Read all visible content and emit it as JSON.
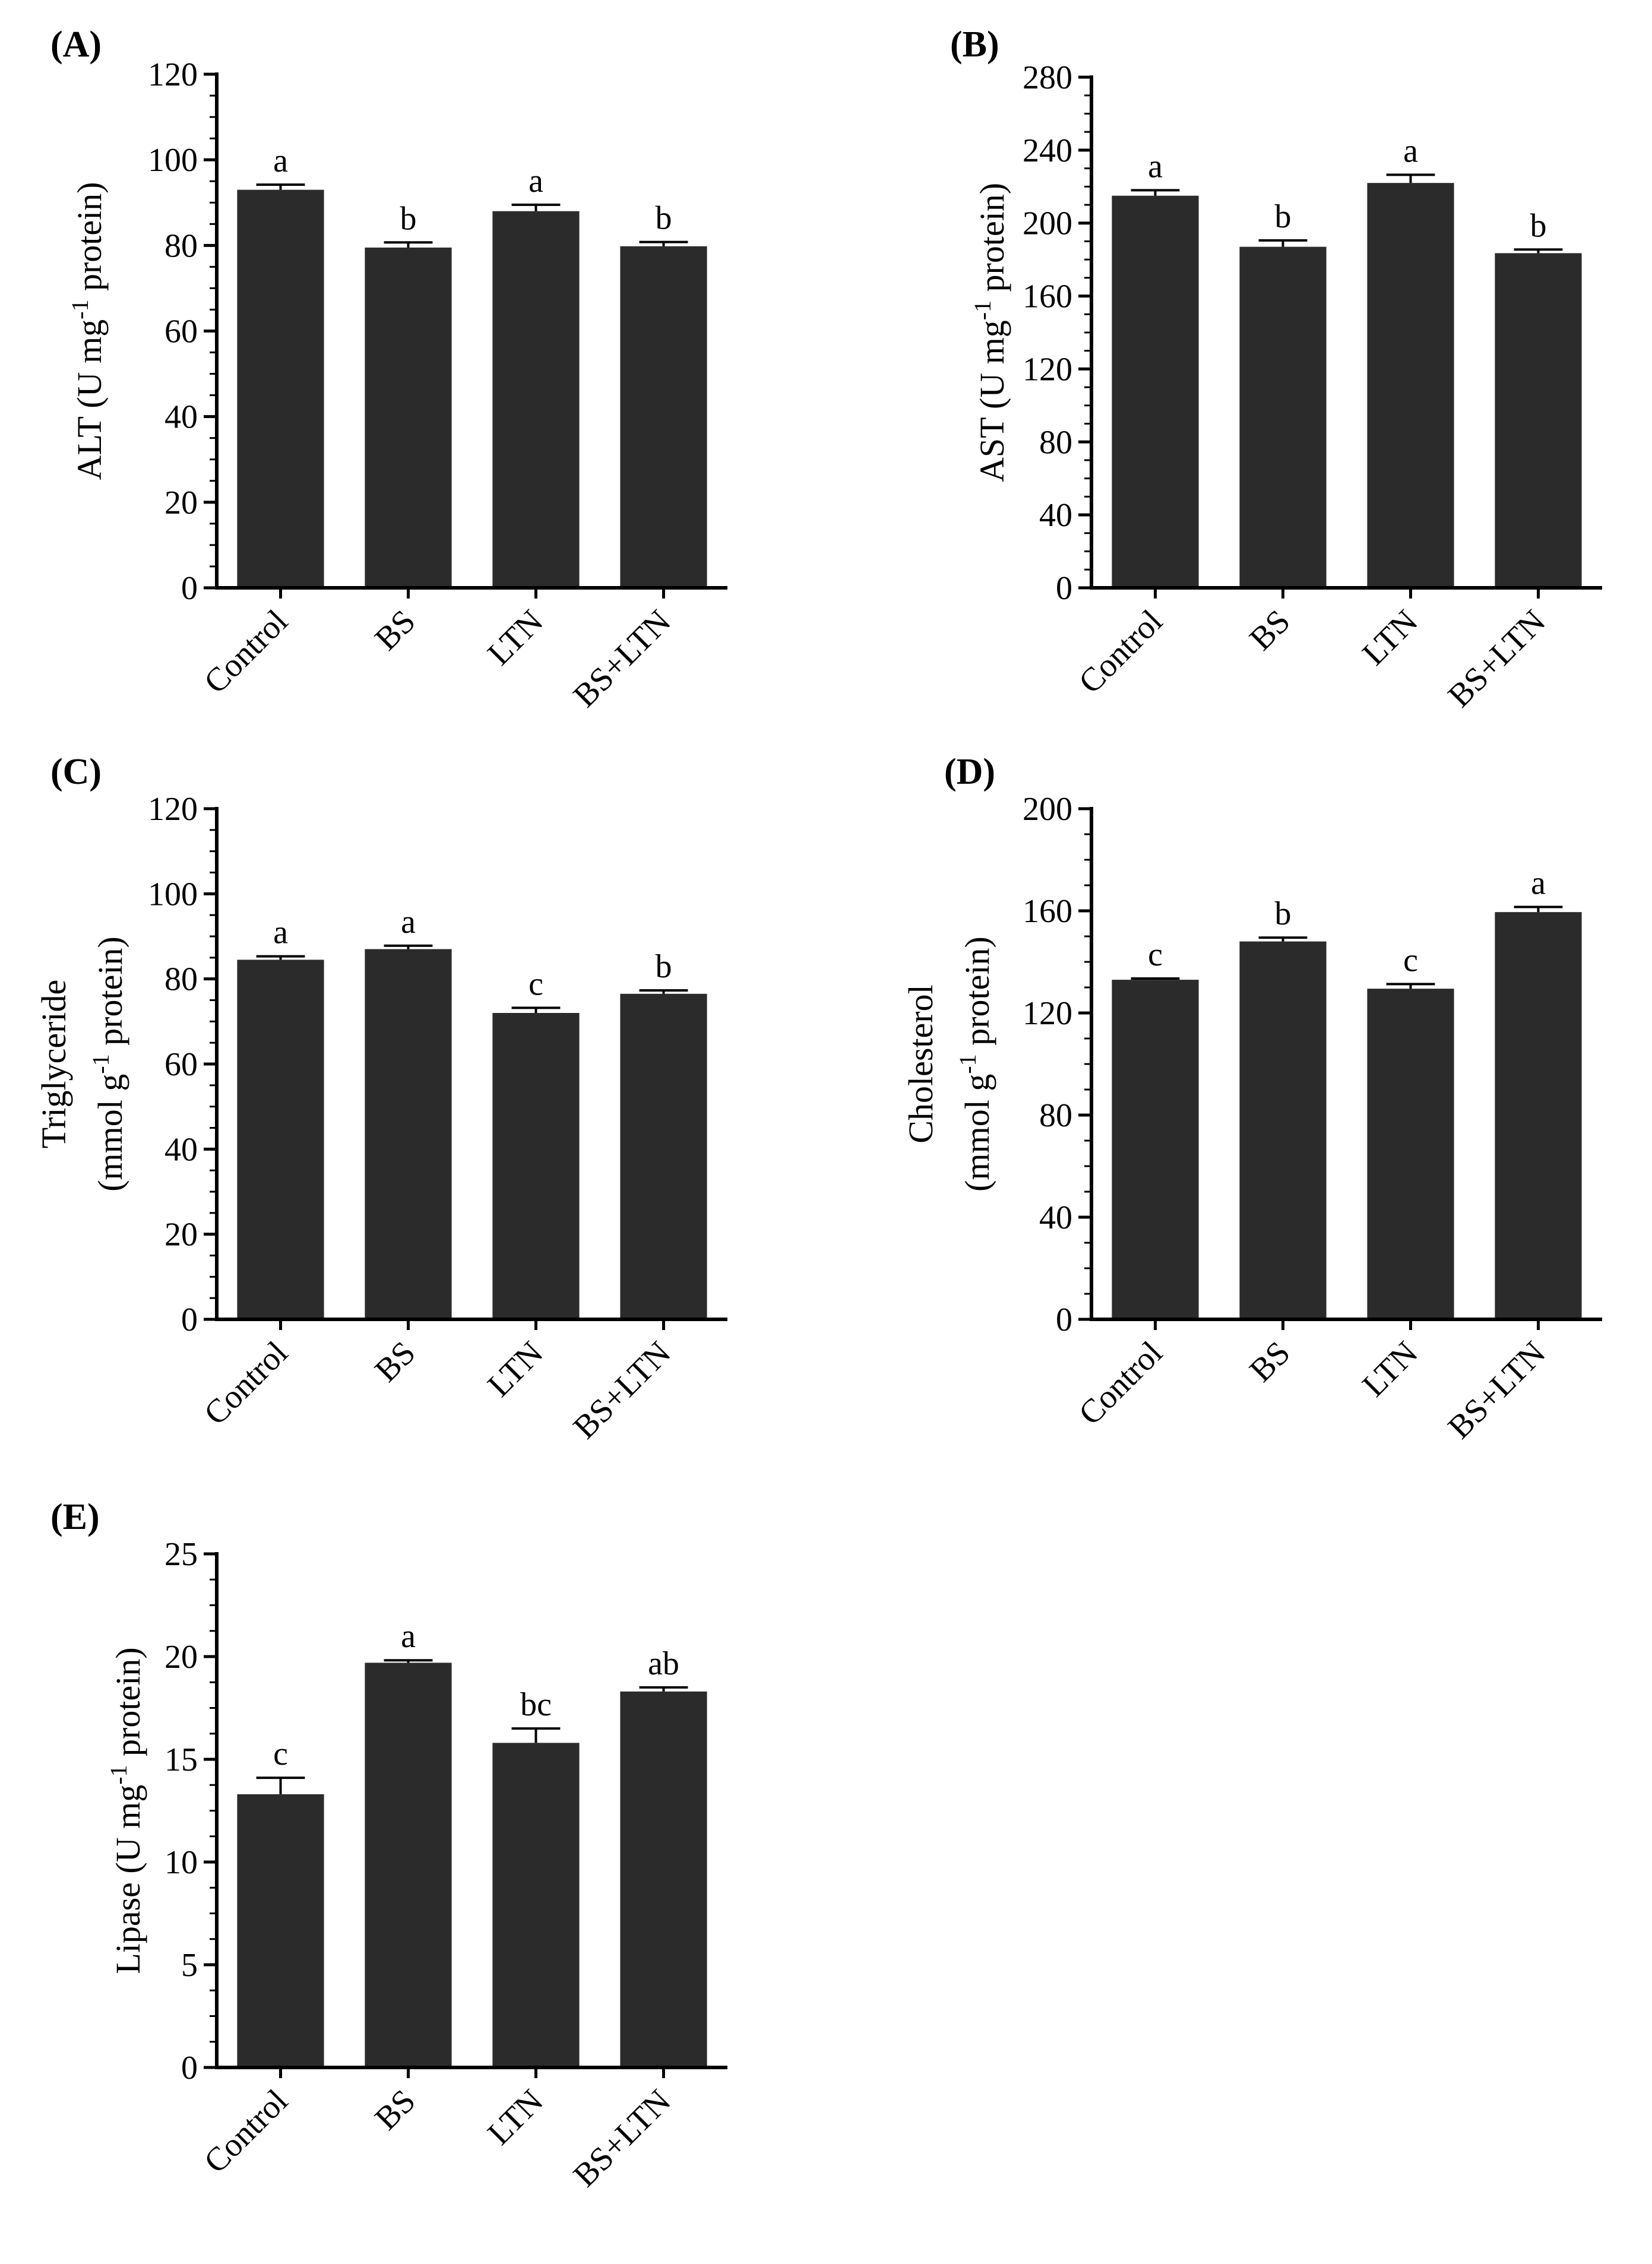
{
  "chart_data": [
    {
      "panel": "(A)",
      "type": "bar",
      "categories": [
        "Control",
        "BS",
        "LTN",
        "BS+LTN"
      ],
      "values": [
        93,
        79.5,
        88,
        79.8
      ],
      "errors": [
        1.2,
        1.2,
        1.5,
        1.0
      ],
      "significance": [
        "a",
        "b",
        "a",
        "b"
      ],
      "ylabel": "ALT (U mg",
      "ylabel_sup": "-1",
      "ylabel_tail": " protein)",
      "ylim": [
        0,
        120
      ],
      "ymajor": 20,
      "yticks": [
        "0",
        "20",
        "40",
        "60",
        "80",
        "100",
        "120"
      ]
    },
    {
      "panel": "(B)",
      "type": "bar",
      "categories": [
        "Control",
        "BS",
        "LTN",
        "BS+LTN"
      ],
      "values": [
        215,
        187,
        222,
        183.5
      ],
      "errors": [
        3,
        3.5,
        4.5,
        2
      ],
      "significance": [
        "a",
        "b",
        "a",
        "b"
      ],
      "ylabel": "AST (U mg",
      "ylabel_sup": "-1",
      "ylabel_tail": " protein)",
      "ylim": [
        0,
        280
      ],
      "ymajor": 40,
      "yticks": [
        "0",
        "40",
        "80",
        "120",
        "160",
        "200",
        "240",
        "280"
      ]
    },
    {
      "panel": "(C)",
      "type": "bar",
      "categories": [
        "Control",
        "BS",
        "LTN",
        "BS+LTN"
      ],
      "values": [
        84.5,
        87,
        72,
        76.5
      ],
      "errors": [
        0.8,
        0.8,
        1.2,
        0.8
      ],
      "significance": [
        "a",
        "a",
        "c",
        "b"
      ],
      "ylabel_line1": "Triglyceride",
      "ylabel": "(mmol g",
      "ylabel_sup": "-1",
      "ylabel_tail": " protein)",
      "ylim": [
        0,
        120
      ],
      "ymajor": 20,
      "yticks": [
        "0",
        "20",
        "40",
        "60",
        "80",
        "100",
        "120"
      ]
    },
    {
      "panel": "(D)",
      "type": "bar",
      "categories": [
        "Control",
        "BS",
        "LTN",
        "BS+LTN"
      ],
      "values": [
        133,
        148,
        129.5,
        159.5
      ],
      "errors": [
        0.5,
        1.5,
        1.8,
        2
      ],
      "significance": [
        "c",
        "b",
        "c",
        "a"
      ],
      "ylabel_line1": "Cholesterol",
      "ylabel": "(mmol g",
      "ylabel_sup": "-1",
      "ylabel_tail": " protein)",
      "ylim": [
        0,
        200
      ],
      "ymajor": 40,
      "yticks": [
        "0",
        "40",
        "80",
        "120",
        "160",
        "200"
      ]
    },
    {
      "panel": "(E)",
      "type": "bar",
      "categories": [
        "Control",
        "BS",
        "LTN",
        "BS+LTN"
      ],
      "values": [
        13.3,
        19.7,
        15.8,
        18.3
      ],
      "errors": [
        0.8,
        0.12,
        0.7,
        0.2
      ],
      "significance": [
        "c",
        "a",
        "bc",
        "ab"
      ],
      "ylabel": "Lipase (U mg",
      "ylabel_sup": "-1",
      "ylabel_tail": " protein)",
      "ylim": [
        0,
        25
      ],
      "ymajor": 5,
      "yticks": [
        "0",
        "5",
        "10",
        "15",
        "20",
        "25"
      ]
    }
  ]
}
